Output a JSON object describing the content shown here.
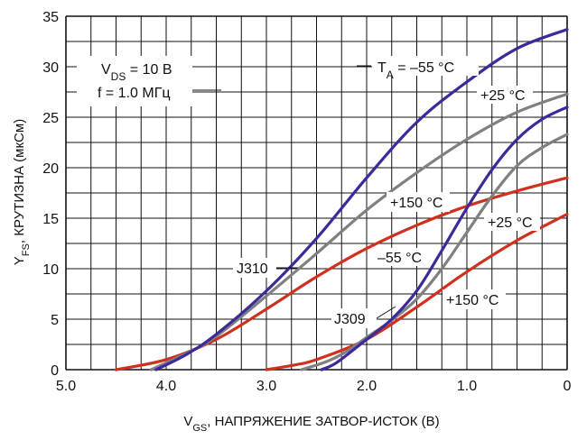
{
  "chart_data": {
    "type": "line",
    "xlabel": {
      "main": "V",
      "sub": "GS",
      "rest": ", НАПРЯЖЕНИЕ ЗАТВОР-ИСТОК (В)"
    },
    "ylabel": {
      "main": "Y",
      "sub": "FS",
      "rest": ", КРУТИЗНА (мкСм)"
    },
    "xlim": [
      5.0,
      0
    ],
    "ylim": [
      0,
      35
    ],
    "x_reversed": true,
    "grid": true,
    "x_ticks": [
      "5.0",
      "4.0",
      "3.0",
      "2.0",
      "1.0",
      "0"
    ],
    "y_ticks": [
      "0",
      "5",
      "10",
      "15",
      "20",
      "25",
      "30",
      "35"
    ],
    "conditions": {
      "vds": {
        "main": "V",
        "sub": "DS",
        "rest": " = 10 В"
      },
      "freq": "f = 1.0 МГц"
    },
    "labels": {
      "j310": "J310",
      "j309": "J309",
      "ta_minus55": {
        "main": "T",
        "sub": "A",
        "rest": " = –55 °C"
      },
      "p25_upper": "+25 °C",
      "p150_upper": "+150 °C",
      "m55_lower": "–55 °C",
      "p25_lower": "+25 °C",
      "p150_lower": "+150 °C"
    },
    "colors": {
      "cold": "#3a2a9a",
      "room": "#808080",
      "hot": "#d0301e"
    },
    "series": [
      {
        "name": "J310 −55 °C",
        "color_key": "cold",
        "x": [
          4.1,
          3.8,
          3.5,
          3.0,
          2.5,
          2.0,
          1.5,
          1.0,
          0.5,
          0.0
        ],
        "y": [
          0,
          1.5,
          3.5,
          7.8,
          13,
          19,
          24.5,
          28.5,
          31.8,
          33.7
        ]
      },
      {
        "name": "J310 +25 °C",
        "color_key": "room",
        "x": [
          4.15,
          3.8,
          3.5,
          3.0,
          2.5,
          2.0,
          1.5,
          1.0,
          0.5,
          0.0
        ],
        "y": [
          0,
          1.6,
          3.3,
          7.3,
          11.5,
          15.8,
          19.5,
          22.8,
          25.5,
          27.3
        ]
      },
      {
        "name": "J310 +150 °C",
        "color_key": "hot",
        "x": [
          4.5,
          4.0,
          3.5,
          3.0,
          2.5,
          2.0,
          1.5,
          1.0,
          0.5,
          0.0
        ],
        "y": [
          0,
          1.0,
          3.0,
          6.0,
          9.2,
          12.0,
          14.3,
          16.2,
          17.7,
          19.0
        ]
      },
      {
        "name": "J309 −55 °C",
        "color_key": "cold",
        "x": [
          2.45,
          2.3,
          2.0,
          1.75,
          1.5,
          1.25,
          1.0,
          0.75,
          0.5,
          0.25,
          0.0
        ],
        "y": [
          0,
          0.7,
          3.0,
          5.0,
          7.8,
          11.8,
          16.0,
          19.8,
          22.8,
          24.8,
          26.0
        ]
      },
      {
        "name": "J309 +25 °C",
        "color_key": "room",
        "x": [
          2.65,
          2.4,
          2.2,
          2.0,
          1.75,
          1.5,
          1.25,
          1.0,
          0.75,
          0.5,
          0.25,
          0.0
        ],
        "y": [
          0,
          0.8,
          1.8,
          3.2,
          4.9,
          7.0,
          10.0,
          13.6,
          17.2,
          20.2,
          22.0,
          23.3
        ]
      },
      {
        "name": "J309 +150 °C",
        "color_key": "hot",
        "x": [
          3.0,
          2.7,
          2.5,
          2.0,
          1.5,
          1.0,
          0.5,
          0.0
        ],
        "y": [
          0,
          0.5,
          1.0,
          3.0,
          6.2,
          9.7,
          12.8,
          15.4
        ]
      }
    ]
  }
}
